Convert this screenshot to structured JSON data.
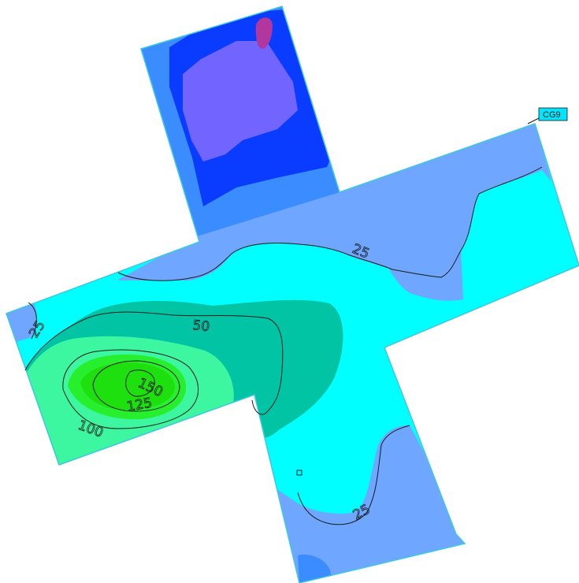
{
  "plot": {
    "marker_tag": "CG9",
    "contour_levels": [
      {
        "id": "c25-upper",
        "value": "25"
      },
      {
        "id": "c25-left",
        "value": "25"
      },
      {
        "id": "c25-lower",
        "value": "25"
      },
      {
        "id": "c50",
        "value": "50"
      },
      {
        "id": "c100",
        "value": "100"
      },
      {
        "id": "c125",
        "value": "125"
      },
      {
        "id": "c150",
        "value": "150"
      }
    ],
    "colors": {
      "outline": "#3ec8e0",
      "cyan_band": "#00ffff",
      "light_blue_band": "#6fa6ff",
      "mid_blue_band": "#3a8cff",
      "deep_blue_band": "#0a3cff",
      "violet_band": "#7264ff",
      "magenta_peak": "#b1379f",
      "teal_band": "#00c4a4",
      "mint_band": "#3cf7a0",
      "green_peak": "#27ef2e",
      "bright_green_core": "#1ee00e",
      "tag_fill": "#00e5ff"
    }
  }
}
